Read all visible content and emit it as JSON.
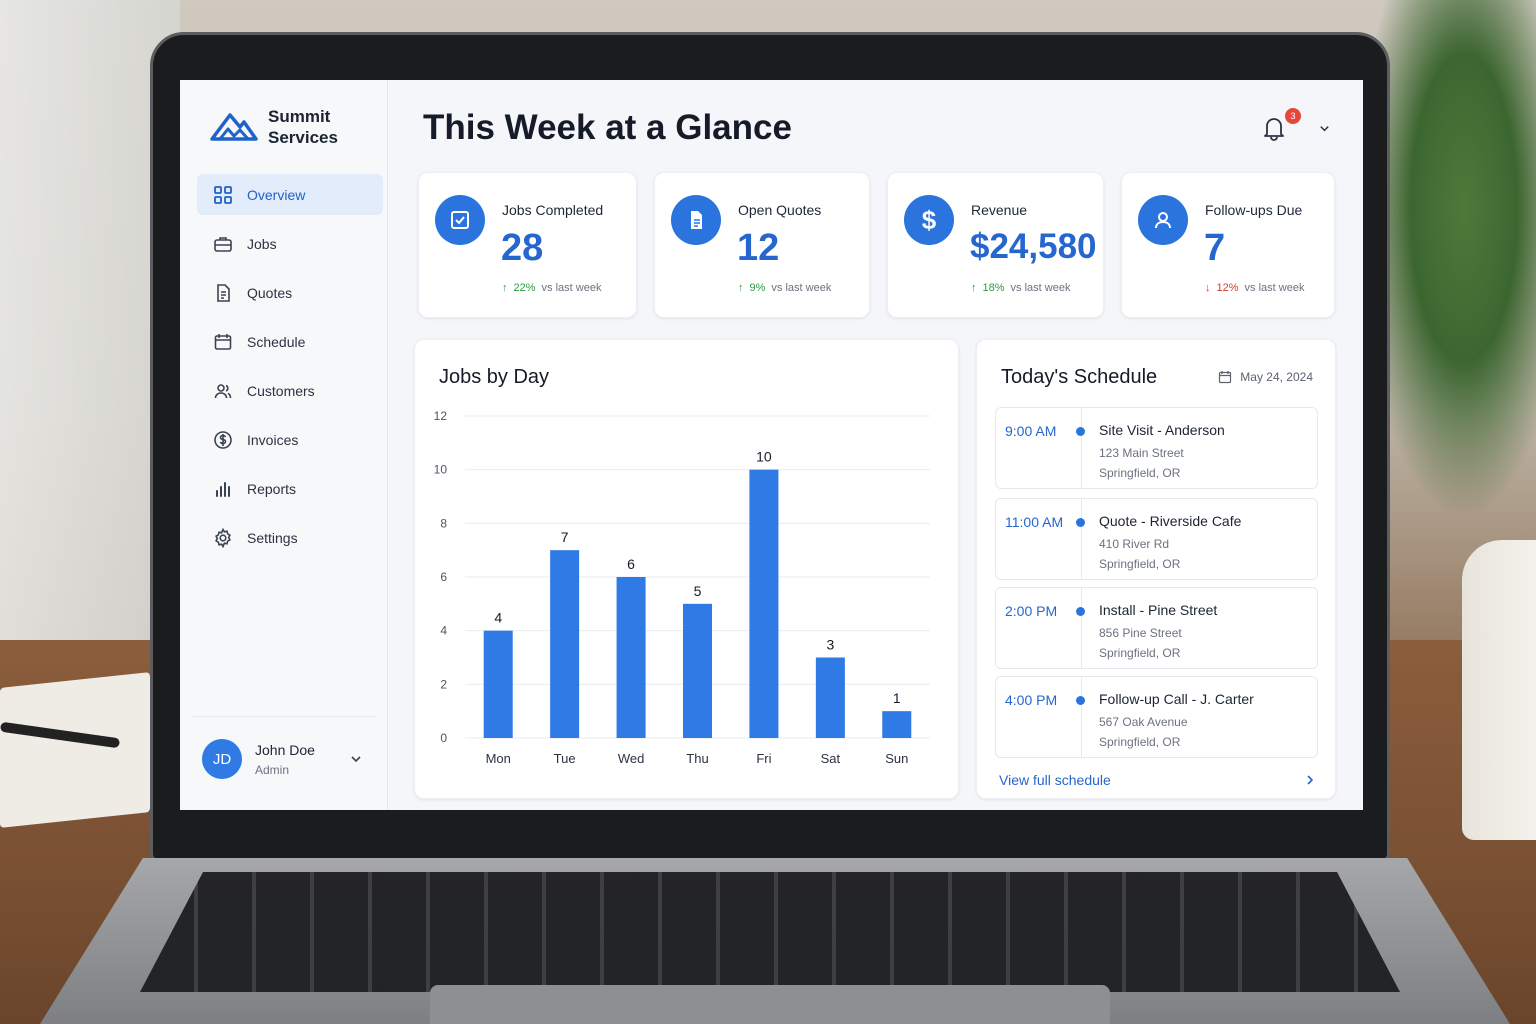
{
  "brand": {
    "name": "Summit Services"
  },
  "sidebar": {
    "items": [
      {
        "label": "Overview",
        "icon": "grid-icon",
        "active": true
      },
      {
        "label": "Jobs",
        "icon": "briefcase-icon"
      },
      {
        "label": "Quotes",
        "icon": "document-icon"
      },
      {
        "label": "Schedule",
        "icon": "calendar-icon"
      },
      {
        "label": "Customers",
        "icon": "users-icon"
      },
      {
        "label": "Invoices",
        "icon": "dollar-circle-icon"
      },
      {
        "label": "Reports",
        "icon": "bar-chart-icon"
      },
      {
        "label": "Settings",
        "icon": "gear-icon"
      }
    ]
  },
  "user": {
    "initials": "JD",
    "name": "John Doe",
    "role": "Admin"
  },
  "header": {
    "title": "This Week at a Glance",
    "notification_count": "3"
  },
  "kpis": [
    {
      "label": "Jobs Completed",
      "value": "28",
      "delta": "22%",
      "direction": "up",
      "suffix": "vs last week",
      "icon": "checkbox-icon"
    },
    {
      "label": "Open Quotes",
      "value": "12",
      "delta": "9%",
      "direction": "up",
      "suffix": "vs last week",
      "icon": "file-icon"
    },
    {
      "label": "Revenue",
      "value": "$24,580",
      "delta": "18%",
      "direction": "up",
      "suffix": "vs last week",
      "icon": "dollar-icon"
    },
    {
      "label": "Follow-ups Due",
      "value": "7",
      "delta": "12%",
      "direction": "down",
      "suffix": "vs last week",
      "icon": "user-icon"
    }
  ],
  "colors": {
    "accent": "#2b73dd",
    "up": "#2d9b46",
    "down": "#d6392f"
  },
  "chart_data": {
    "type": "bar",
    "title": "Jobs by Day",
    "categories": [
      "Mon",
      "Tue",
      "Wed",
      "Thu",
      "Fri",
      "Sat",
      "Sun"
    ],
    "values": [
      4,
      7,
      6,
      5,
      10,
      3,
      1
    ],
    "yticks": [
      0,
      2,
      4,
      6,
      8,
      10,
      12
    ],
    "ylim": [
      0,
      12
    ],
    "grid": true,
    "data_labels": true,
    "bar_color": "#2f7ae5"
  },
  "schedule": {
    "title": "Today's Schedule",
    "date": "May 24, 2024",
    "items": [
      {
        "time": "9:00 AM",
        "title": "Site Visit - Anderson",
        "address": "123 Main Street",
        "city": "Springfield, OR"
      },
      {
        "time": "11:00 AM",
        "title": "Quote - Riverside Cafe",
        "address": "410 River Rd",
        "city": "Springfield, OR"
      },
      {
        "time": "2:00 PM",
        "title": "Install - Pine Street",
        "address": "856 Pine Street",
        "city": "Springfield, OR"
      },
      {
        "time": "4:00 PM",
        "title": "Follow-up Call - J. Carter",
        "address": "567 Oak Avenue",
        "city": "Springfield, OR"
      }
    ],
    "view_all": "View full schedule"
  }
}
